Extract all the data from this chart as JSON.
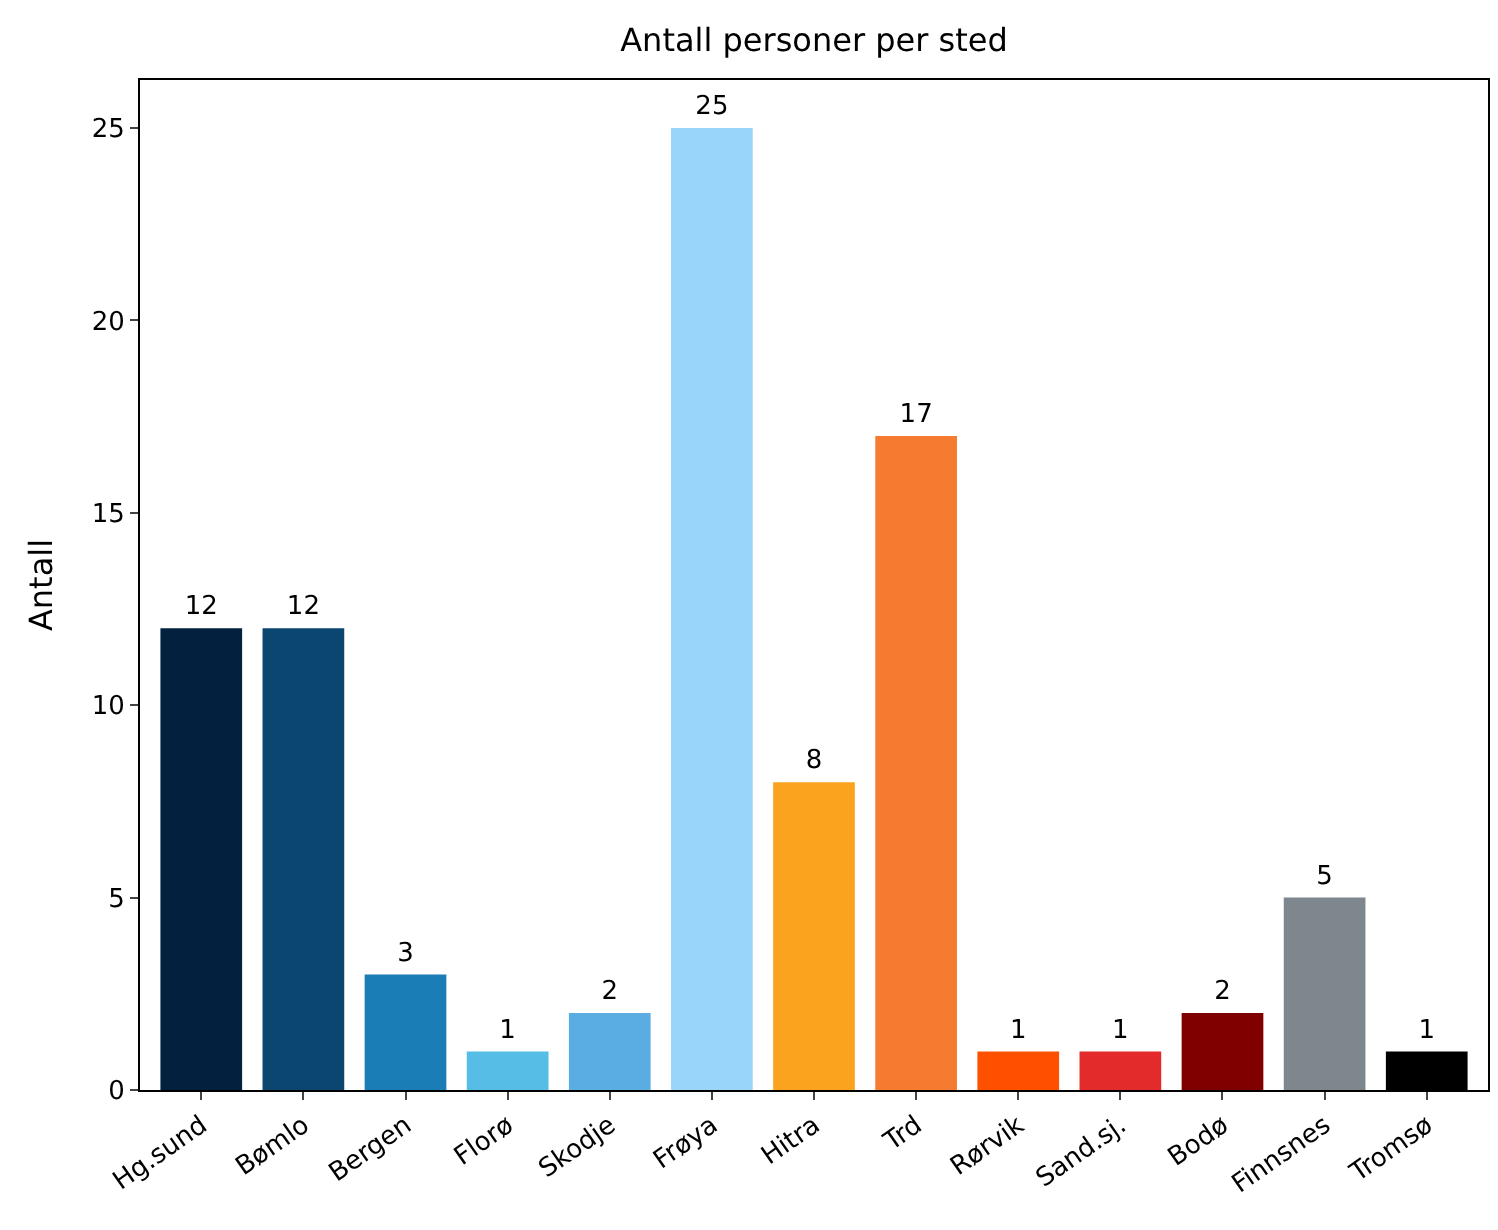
{
  "chart_data": {
    "type": "bar",
    "title": "Antall personer per sted",
    "ylabel": "Antall",
    "categories": [
      "Hg.sund",
      "Bømlo",
      "Bergen",
      "Florø",
      "Skodje",
      "Frøya",
      "Hitra",
      "Trd",
      "Rørvik",
      "Sand.sj.",
      "Bodø",
      "Finnsnes",
      "Tromsø"
    ],
    "values": [
      12,
      12,
      3,
      1,
      2,
      25,
      8,
      17,
      1,
      1,
      2,
      5,
      1
    ],
    "colors": [
      "#03203f",
      "#0a4670",
      "#1a7db5",
      "#55bde6",
      "#5aade0",
      "#99d4fa",
      "#fba31f",
      "#f47b30",
      "#ff5000",
      "#e32b2b",
      "#800000",
      "#7e878e",
      "#000000"
    ],
    "ylim": [
      0,
      26.25
    ],
    "yticks": [
      0,
      5,
      10,
      15,
      20,
      25
    ],
    "data_labels": true
  }
}
